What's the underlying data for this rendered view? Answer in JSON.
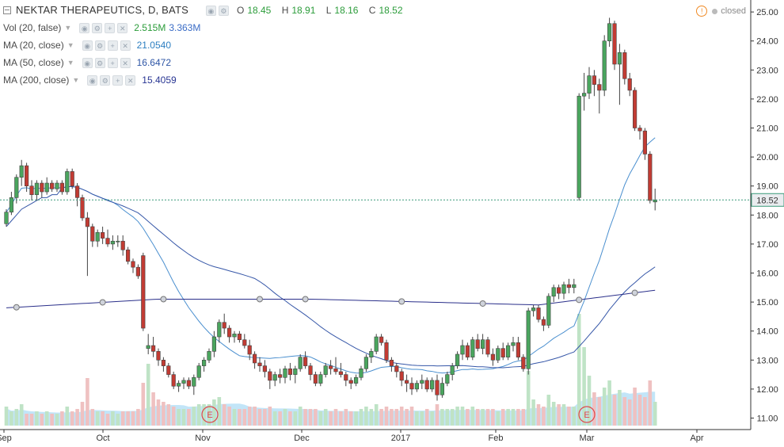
{
  "header": {
    "title": "NEKTAR THERAPEUTICS, D, BATS",
    "ohlc": {
      "o_label": "O",
      "o": "18.45",
      "h_label": "H",
      "h": "18.91",
      "l_label": "L",
      "l": "18.16",
      "c_label": "C",
      "c": "18.52"
    },
    "status": "closed",
    "status_icon": "warning-icon"
  },
  "indicators": [
    {
      "label": "Vol (20, false)",
      "values": [
        "2.515M",
        "3.363M"
      ],
      "colors": [
        "#2b9c3a",
        "#3a6cc6"
      ]
    },
    {
      "label": "MA (20, close)",
      "values": [
        "21.0540"
      ],
      "colors": [
        "#2d7fc1"
      ]
    },
    {
      "label": "MA (50, close)",
      "values": [
        "16.6472"
      ],
      "colors": [
        "#2d55a5"
      ]
    },
    {
      "label": "MA (200, close)",
      "values": [
        "15.4059"
      ],
      "colors": [
        "#283593"
      ]
    }
  ],
  "colors": {
    "up": "#4aa55e",
    "down": "#c23b33",
    "wick": "#444444",
    "ma20": "#4a8fcf",
    "ma50": "#3657a8",
    "ma200": "#2a2f8a",
    "price_line": "#3a9a7a",
    "vol_up": "#bfe3c6",
    "vol_down": "#efc1c1",
    "vol_area": "#8fd0f2",
    "axis_text": "#333333"
  },
  "chart_data": {
    "type": "candlestick",
    "y_ticks": [
      "11.00",
      "12.00",
      "13.00",
      "14.00",
      "15.00",
      "16.00",
      "17.00",
      "18.00",
      "19.00",
      "20.00",
      "21.00",
      "22.00",
      "23.00",
      "24.00",
      "25.00"
    ],
    "x_ticks": [
      "Sep",
      "Oct",
      "Nov",
      "Dec",
      "2017",
      "Feb",
      "Mar",
      "Apr"
    ],
    "ylim": [
      10.7,
      25.2
    ],
    "last_price": "18.52",
    "earnings_markers": [
      "E",
      "E"
    ],
    "candles": [
      [
        17.7,
        18.2,
        17.6,
        18.1
      ],
      [
        18.1,
        18.8,
        18.0,
        18.6
      ],
      [
        18.6,
        19.4,
        18.4,
        19.3
      ],
      [
        19.3,
        19.9,
        19.0,
        19.7
      ],
      [
        19.7,
        19.8,
        18.8,
        19.0
      ],
      [
        19.0,
        19.2,
        18.5,
        18.7
      ],
      [
        18.7,
        19.2,
        18.5,
        19.1
      ],
      [
        19.1,
        19.2,
        18.6,
        18.8
      ],
      [
        18.8,
        19.3,
        18.7,
        19.1
      ],
      [
        19.1,
        19.2,
        18.8,
        18.9
      ],
      [
        18.9,
        19.2,
        18.8,
        19.1
      ],
      [
        19.1,
        19.2,
        18.7,
        18.8
      ],
      [
        18.8,
        19.6,
        18.7,
        19.5
      ],
      [
        19.5,
        19.6,
        18.9,
        19.0
      ],
      [
        19.0,
        19.1,
        18.3,
        18.6
      ],
      [
        18.6,
        18.7,
        17.8,
        17.9
      ],
      [
        17.9,
        18.1,
        15.9,
        17.6
      ],
      [
        17.6,
        17.7,
        16.9,
        17.1
      ],
      [
        17.1,
        17.5,
        16.9,
        17.4
      ],
      [
        17.4,
        17.6,
        17.0,
        17.2
      ],
      [
        17.2,
        17.5,
        16.9,
        17.0
      ],
      [
        17.0,
        17.3,
        16.8,
        17.1
      ],
      [
        17.1,
        17.3,
        16.9,
        17.1
      ],
      [
        17.1,
        17.3,
        16.6,
        16.8
      ],
      [
        16.8,
        16.9,
        16.3,
        16.4
      ],
      [
        16.4,
        16.5,
        16.0,
        16.2
      ],
      [
        16.2,
        16.3,
        15.8,
        15.9
      ],
      [
        16.6,
        16.7,
        14.0,
        14.1
      ],
      [
        13.4,
        13.9,
        13.2,
        13.5
      ],
      [
        13.5,
        13.8,
        13.1,
        13.3
      ],
      [
        13.3,
        13.4,
        12.8,
        13.0
      ],
      [
        13.0,
        13.1,
        12.6,
        12.8
      ],
      [
        12.8,
        12.9,
        12.4,
        12.5
      ],
      [
        12.5,
        12.6,
        12.0,
        12.1
      ],
      [
        12.1,
        12.3,
        11.9,
        12.2
      ],
      [
        12.2,
        12.4,
        12.0,
        12.3
      ],
      [
        12.3,
        12.4,
        12.0,
        12.1
      ],
      [
        12.1,
        12.5,
        11.8,
        12.4
      ],
      [
        12.4,
        12.9,
        12.3,
        12.8
      ],
      [
        12.8,
        13.1,
        12.6,
        13.0
      ],
      [
        13.0,
        13.4,
        12.9,
        13.3
      ],
      [
        13.3,
        14.0,
        13.1,
        13.8
      ],
      [
        13.8,
        14.4,
        13.6,
        14.3
      ],
      [
        14.3,
        14.6,
        13.9,
        14.1
      ],
      [
        14.1,
        14.2,
        13.6,
        13.8
      ],
      [
        13.8,
        14.0,
        13.6,
        13.9
      ],
      [
        13.9,
        14.0,
        13.6,
        13.7
      ],
      [
        13.7,
        13.9,
        13.4,
        13.5
      ],
      [
        13.5,
        13.7,
        13.0,
        13.2
      ],
      [
        13.2,
        13.3,
        12.7,
        12.9
      ],
      [
        12.9,
        13.1,
        12.6,
        12.8
      ],
      [
        12.8,
        13.0,
        12.4,
        12.6
      ],
      [
        12.6,
        12.7,
        12.0,
        12.3
      ],
      [
        12.3,
        12.6,
        12.1,
        12.5
      ],
      [
        12.5,
        12.7,
        12.2,
        12.4
      ],
      [
        12.4,
        12.8,
        12.2,
        12.7
      ],
      [
        12.7,
        12.9,
        12.3,
        12.5
      ],
      [
        12.5,
        12.8,
        12.2,
        12.7
      ],
      [
        12.7,
        13.2,
        12.6,
        13.1
      ],
      [
        13.1,
        13.3,
        12.7,
        12.8
      ],
      [
        12.8,
        12.9,
        12.3,
        12.5
      ],
      [
        12.5,
        12.6,
        12.1,
        12.2
      ],
      [
        12.2,
        12.6,
        12.1,
        12.5
      ],
      [
        12.5,
        12.9,
        12.4,
        12.8
      ],
      [
        12.8,
        13.0,
        12.5,
        12.7
      ],
      [
        12.7,
        13.1,
        12.5,
        12.6
      ],
      [
        12.6,
        12.9,
        12.4,
        12.5
      ],
      [
        12.5,
        12.6,
        12.1,
        12.3
      ],
      [
        12.3,
        12.4,
        12.0,
        12.2
      ],
      [
        12.2,
        12.5,
        12.1,
        12.4
      ],
      [
        12.4,
        12.8,
        12.3,
        12.7
      ],
      [
        12.7,
        13.2,
        12.6,
        13.1
      ],
      [
        13.1,
        13.4,
        12.9,
        13.3
      ],
      [
        13.3,
        13.9,
        13.2,
        13.8
      ],
      [
        13.8,
        13.9,
        13.5,
        13.6
      ],
      [
        13.6,
        13.7,
        12.9,
        13.0
      ],
      [
        13.0,
        13.1,
        12.6,
        12.8
      ],
      [
        12.8,
        12.9,
        12.4,
        12.6
      ],
      [
        12.6,
        12.7,
        12.1,
        12.3
      ],
      [
        12.3,
        12.5,
        11.9,
        12.2
      ],
      [
        12.2,
        12.4,
        11.8,
        12.0
      ],
      [
        12.0,
        12.3,
        11.9,
        12.2
      ],
      [
        12.2,
        12.5,
        12.0,
        12.3
      ],
      [
        12.3,
        12.4,
        11.9,
        12.0
      ],
      [
        12.0,
        12.4,
        11.9,
        12.3
      ],
      [
        12.3,
        12.5,
        11.6,
        11.8
      ],
      [
        11.8,
        12.4,
        11.7,
        12.2
      ],
      [
        12.2,
        12.6,
        12.1,
        12.5
      ],
      [
        12.5,
        12.9,
        12.3,
        12.8
      ],
      [
        12.8,
        13.3,
        12.7,
        13.2
      ],
      [
        13.2,
        13.7,
        13.0,
        13.5
      ],
      [
        13.5,
        13.6,
        13.0,
        13.1
      ],
      [
        13.1,
        13.8,
        13.0,
        13.7
      ],
      [
        13.7,
        13.9,
        13.3,
        13.4
      ],
      [
        13.4,
        13.9,
        13.2,
        13.7
      ],
      [
        13.7,
        13.8,
        13.1,
        13.2
      ],
      [
        13.2,
        13.4,
        12.8,
        13.0
      ],
      [
        13.0,
        13.5,
        12.9,
        13.4
      ],
      [
        13.4,
        13.6,
        13.0,
        13.1
      ],
      [
        13.1,
        13.6,
        13.0,
        13.5
      ],
      [
        13.5,
        13.8,
        13.3,
        13.6
      ],
      [
        13.6,
        13.8,
        13.0,
        13.1
      ],
      [
        13.1,
        13.2,
        12.6,
        12.7
      ],
      [
        12.7,
        14.8,
        12.5,
        14.7
      ],
      [
        14.7,
        14.9,
        14.5,
        14.8
      ],
      [
        14.8,
        14.9,
        14.3,
        14.4
      ],
      [
        14.4,
        14.5,
        14.0,
        14.2
      ],
      [
        14.2,
        15.3,
        14.1,
        15.2
      ],
      [
        15.2,
        15.6,
        15.0,
        15.5
      ],
      [
        15.5,
        15.6,
        15.1,
        15.3
      ],
      [
        15.3,
        15.7,
        15.1,
        15.6
      ],
      [
        15.6,
        15.8,
        15.3,
        15.5
      ],
      [
        15.5,
        15.8,
        15.3,
        15.6
      ],
      [
        18.6,
        22.2,
        18.5,
        22.1
      ],
      [
        22.1,
        22.9,
        21.6,
        22.2
      ],
      [
        22.2,
        23.1,
        22.0,
        22.8
      ],
      [
        22.8,
        23.0,
        22.1,
        22.5
      ],
      [
        22.5,
        22.7,
        21.5,
        22.3
      ],
      [
        22.3,
        24.2,
        22.1,
        24.0
      ],
      [
        24.0,
        24.8,
        23.8,
        24.6
      ],
      [
        24.6,
        24.7,
        23.0,
        23.2
      ],
      [
        23.2,
        23.9,
        21.8,
        23.6
      ],
      [
        23.6,
        23.7,
        22.5,
        22.7
      ],
      [
        22.7,
        22.9,
        22.1,
        22.3
      ],
      [
        22.3,
        22.4,
        20.9,
        21.0
      ],
      [
        21.0,
        21.1,
        20.6,
        20.9
      ],
      [
        20.9,
        21.0,
        19.9,
        20.1
      ],
      [
        20.1,
        20.2,
        18.4,
        18.5
      ],
      [
        18.45,
        18.91,
        18.16,
        18.52
      ]
    ],
    "volume": [
      0.8,
      0.6,
      0.7,
      0.9,
      0.5,
      0.5,
      0.6,
      0.5,
      0.6,
      0.5,
      0.5,
      0.6,
      0.8,
      0.6,
      0.7,
      1.0,
      2.0,
      0.7,
      0.6,
      0.6,
      0.5,
      0.6,
      0.5,
      0.6,
      0.6,
      0.6,
      0.7,
      1.8,
      2.6,
      1.4,
      1.1,
      1.0,
      0.9,
      0.8,
      0.7,
      0.7,
      0.7,
      0.8,
      0.9,
      0.9,
      0.9,
      1.1,
      1.2,
      0.9,
      0.8,
      0.7,
      0.7,
      0.7,
      0.8,
      0.8,
      0.7,
      0.7,
      0.8,
      0.6,
      0.6,
      0.7,
      0.6,
      0.6,
      0.8,
      0.7,
      0.7,
      0.7,
      0.6,
      0.7,
      0.6,
      0.7,
      0.6,
      0.7,
      0.6,
      0.6,
      0.7,
      0.8,
      0.7,
      0.9,
      0.7,
      0.8,
      0.7,
      0.7,
      0.8,
      0.7,
      0.8,
      0.6,
      0.6,
      0.7,
      0.6,
      0.9,
      0.7,
      0.7,
      0.7,
      0.8,
      0.8,
      0.7,
      0.8,
      0.7,
      0.7,
      0.7,
      0.7,
      0.6,
      0.7,
      0.7,
      0.7,
      0.7,
      0.7,
      2.3,
      1.1,
      0.9,
      0.8,
      1.3,
      1.0,
      0.9,
      0.9,
      0.8,
      0.8,
      4.7,
      3.3,
      2.1,
      1.4,
      1.2,
      1.6,
      1.9,
      1.3,
      1.5,
      1.2,
      1.1,
      1.6,
      1.3,
      1.2,
      1.9,
      1.0
    ]
  }
}
